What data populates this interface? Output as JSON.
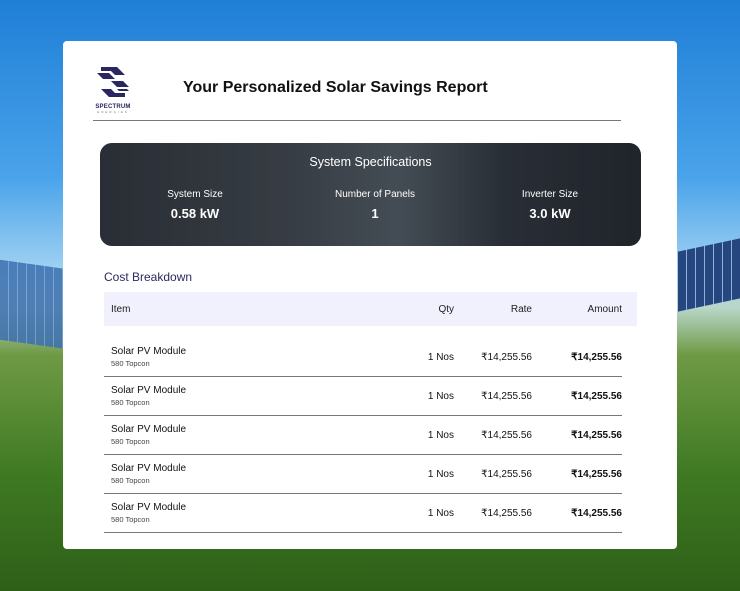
{
  "logo": {
    "name": "SPECTRUM",
    "sub": "ENERGIES"
  },
  "title": "Your Personalized Solar Savings Report",
  "specs": {
    "title": "System Specifications",
    "items": [
      {
        "label": "System Size",
        "value": "0.58 kW"
      },
      {
        "label": "Number of Panels",
        "value": "1"
      },
      {
        "label": "Inverter Size",
        "value": "3.0 kW"
      }
    ]
  },
  "cost": {
    "title": "Cost Breakdown",
    "headers": {
      "item": "Item",
      "qty": "Qty",
      "rate": "Rate",
      "amount": "Amount"
    },
    "rows": [
      {
        "item": "Solar PV Module",
        "sub": "580 Topcon",
        "qty": "1 Nos",
        "rate": "₹14,255.56",
        "amount": "₹14,255.56"
      },
      {
        "item": "Solar PV Module",
        "sub": "580 Topcon",
        "qty": "1 Nos",
        "rate": "₹14,255.56",
        "amount": "₹14,255.56"
      },
      {
        "item": "Solar PV Module",
        "sub": "580 Topcon",
        "qty": "1 Nos",
        "rate": "₹14,255.56",
        "amount": "₹14,255.56"
      },
      {
        "item": "Solar PV Module",
        "sub": "580 Topcon",
        "qty": "1 Nos",
        "rate": "₹14,255.56",
        "amount": "₹14,255.56"
      },
      {
        "item": "Solar PV Module",
        "sub": "580 Topcon",
        "qty": "1 Nos",
        "rate": "₹14,255.56",
        "amount": "₹14,255.56"
      }
    ]
  }
}
